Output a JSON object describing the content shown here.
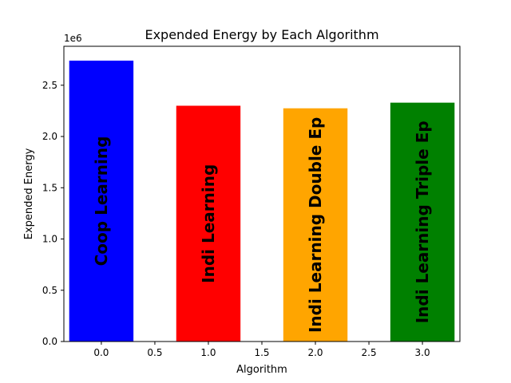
{
  "chart_data": {
    "type": "bar",
    "title": "Expended Energy by Each Algorithm",
    "xlabel": "Algorithm",
    "ylabel": "Expended Energy",
    "y_offset_label": "1e6",
    "categories": [
      "Coop Learning",
      "Indi Learning",
      "Indi Learning Double Ep",
      "Indi Learning Triple Ep"
    ],
    "x": [
      0,
      1,
      2,
      3
    ],
    "values": [
      2740000,
      2300000,
      2275000,
      2330000
    ],
    "bar_width": 0.6,
    "colors": [
      "#0000ff",
      "#ff0000",
      "#ffa500",
      "#008000"
    ],
    "xlim": [
      -0.35,
      3.35
    ],
    "ylim": [
      0,
      2880000
    ],
    "x_ticks": [
      0.0,
      0.5,
      1.0,
      1.5,
      2.0,
      2.5,
      3.0
    ],
    "x_tick_labels": [
      "0.0",
      "0.5",
      "1.0",
      "1.5",
      "2.0",
      "2.5",
      "3.0"
    ],
    "y_ticks": [
      0,
      500000,
      1000000,
      1500000,
      2000000,
      2500000
    ],
    "y_tick_labels": [
      "0.0",
      "0.5",
      "1.0",
      "1.5",
      "2.0",
      "2.5"
    ],
    "grid": false,
    "legend": "none"
  }
}
